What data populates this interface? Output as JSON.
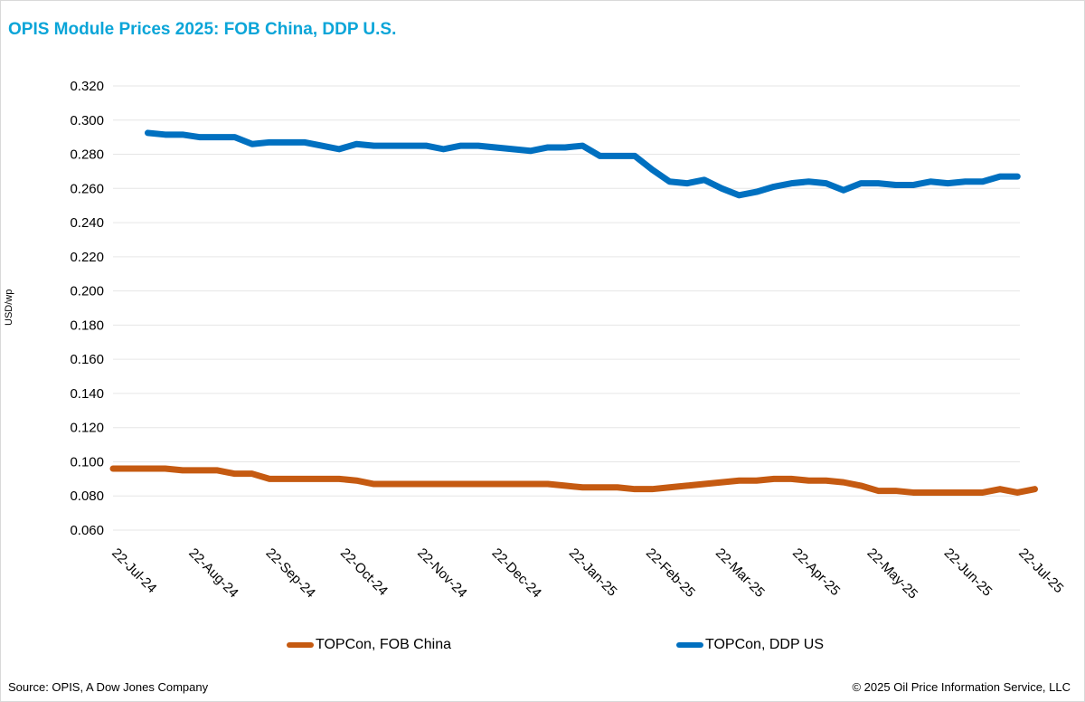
{
  "chart_data": {
    "type": "line",
    "title": "OPIS Module Prices 2025: FOB China, DDP U.S.",
    "xlabel": "",
    "ylabel": "USD/wp",
    "ylim": [
      0.06,
      0.32
    ],
    "yticks": [
      "0.320",
      "0.300",
      "0.280",
      "0.260",
      "0.240",
      "0.220",
      "0.200",
      "0.180",
      "0.160",
      "0.140",
      "0.120",
      "0.100",
      "0.080",
      "0.060"
    ],
    "xlim": [
      "2024-07-22",
      "2025-07-22"
    ],
    "xticks": [
      "22-Jul-24",
      "22-Aug-24",
      "22-Sep-24",
      "22-Oct-24",
      "22-Nov-24",
      "22-Dec-24",
      "22-Jan-25",
      "22-Feb-25",
      "22-Mar-25",
      "22-Apr-25",
      "22-May-25",
      "22-Jun-25",
      "22-Jul-25"
    ],
    "xtick_dates": [
      "2024-07-22",
      "2024-08-22",
      "2024-09-22",
      "2024-10-22",
      "2024-11-22",
      "2024-12-22",
      "2025-01-22",
      "2025-02-22",
      "2025-03-22",
      "2025-04-22",
      "2025-05-22",
      "2025-06-22",
      "2025-07-22"
    ],
    "grid": true,
    "legend_position": "bottom",
    "series": [
      {
        "name": "TOPCon, FOB China",
        "color": "#c55a11",
        "start_date": "2024-07-22",
        "interval_days": 7,
        "values": [
          0.096,
          0.096,
          0.096,
          0.096,
          0.095,
          0.095,
          0.095,
          0.093,
          0.093,
          0.09,
          0.09,
          0.09,
          0.09,
          0.09,
          0.089,
          0.087,
          0.087,
          0.087,
          0.087,
          0.087,
          0.087,
          0.087,
          0.087,
          0.087,
          0.087,
          0.087,
          0.086,
          0.085,
          0.085,
          0.085,
          0.084,
          0.084,
          0.085,
          0.086,
          0.087,
          0.088,
          0.089,
          0.089,
          0.09,
          0.09,
          0.089,
          0.089,
          0.088,
          0.086,
          0.083,
          0.083,
          0.082,
          0.082,
          0.082,
          0.082,
          0.082,
          0.084,
          0.082,
          0.084
        ]
      },
      {
        "name": "TOPCon, DDP US",
        "color": "#0070c0",
        "start_date": "2024-08-05",
        "interval_days": 7,
        "values": [
          0.2925,
          0.2915,
          0.2915,
          0.29,
          0.29,
          0.29,
          0.286,
          0.287,
          0.287,
          0.287,
          0.285,
          0.283,
          0.286,
          0.285,
          0.285,
          0.285,
          0.285,
          0.283,
          0.285,
          0.285,
          0.284,
          0.283,
          0.282,
          0.284,
          0.284,
          0.285,
          0.279,
          0.279,
          0.279,
          0.271,
          0.264,
          0.263,
          0.265,
          0.26,
          0.256,
          0.258,
          0.261,
          0.263,
          0.264,
          0.263,
          0.259,
          0.263,
          0.263,
          0.262,
          0.262,
          0.264,
          0.263,
          0.264,
          0.264,
          0.267,
          0.267
        ]
      }
    ]
  },
  "footer": {
    "source": "Source: OPIS, A Dow Jones Company",
    "copyright": "© 2025 Oil Price Information Service, LLC"
  }
}
